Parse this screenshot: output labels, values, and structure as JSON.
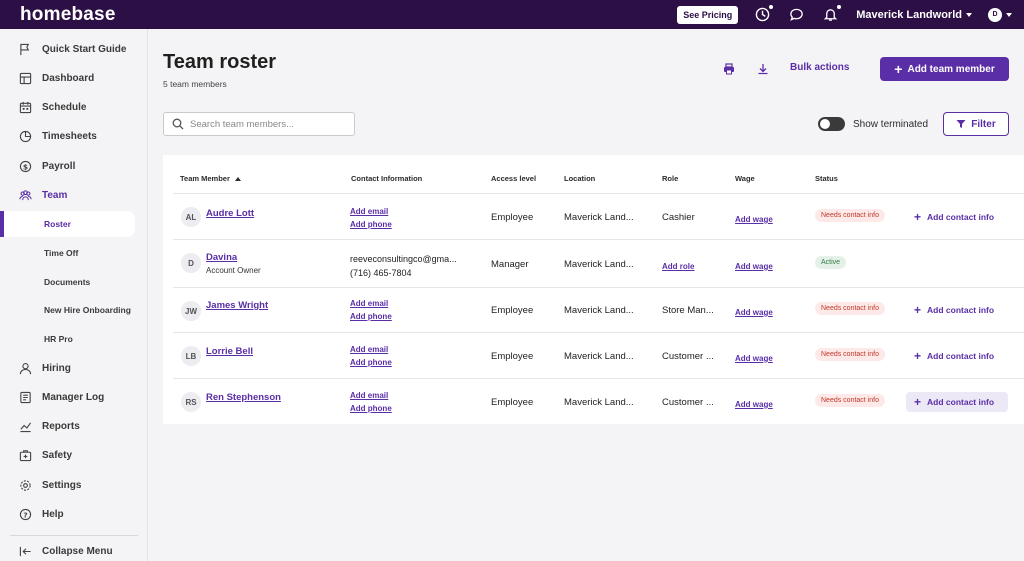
{
  "topbar": {
    "logo": "homebase",
    "see_pricing": "See Pricing",
    "user_name": "Maverick Landworld",
    "avatar_initial": "D",
    "icons": [
      "clock-icon",
      "chat-icon",
      "bell-icon"
    ]
  },
  "sidebar": {
    "items": [
      {
        "label": "Quick Start Guide",
        "icon": "flag-icon"
      },
      {
        "label": "Dashboard",
        "icon": "dashboard-icon"
      },
      {
        "label": "Schedule",
        "icon": "calendar-icon"
      },
      {
        "label": "Timesheets",
        "icon": "timesheet-icon"
      },
      {
        "label": "Payroll",
        "icon": "dollar-icon"
      },
      {
        "label": "Team",
        "icon": "team-icon"
      },
      {
        "label": "Hiring",
        "icon": "person-icon"
      },
      {
        "label": "Manager Log",
        "icon": "log-icon"
      },
      {
        "label": "Reports",
        "icon": "chart-icon"
      },
      {
        "label": "Safety",
        "icon": "first-aid-icon"
      },
      {
        "label": "Settings",
        "icon": "gear-icon"
      },
      {
        "label": "Help",
        "icon": "help-icon"
      }
    ],
    "team_sub": [
      {
        "label": "Roster"
      },
      {
        "label": "Time Off"
      },
      {
        "label": "Documents"
      },
      {
        "label": "New Hire Onboarding"
      },
      {
        "label": "HR Pro"
      }
    ],
    "collapse": "Collapse Menu"
  },
  "header": {
    "title": "Team roster",
    "count": "5 team members",
    "bulk_actions": "Bulk actions",
    "add_member": "Add team member"
  },
  "toolbar": {
    "search_placeholder": "Search team members...",
    "show_terminated": "Show terminated",
    "filter": "Filter"
  },
  "table": {
    "columns": [
      "Team Member",
      "Contact Information",
      "Access level",
      "Location",
      "Role",
      "Wage",
      "Status"
    ],
    "rows": [
      {
        "initials": "AL",
        "name": "Audre Lott",
        "subtitle": "",
        "contact": [
          "Add email",
          "Add phone"
        ],
        "contact_is_link": true,
        "access": "Employee",
        "location": "Maverick Land...",
        "role": "Cashier",
        "role_is_link": false,
        "wage": "Add wage",
        "status": "Needs contact info",
        "status_type": "warn",
        "action": "Add contact info"
      },
      {
        "initials": "D",
        "name": "Davina",
        "subtitle": "Account Owner",
        "contact": [
          "reeveconsultingco@gma...",
          "(716) 465-7804"
        ],
        "contact_is_link": false,
        "access": "Manager",
        "location": "Maverick Land...",
        "role": "Add role",
        "role_is_link": true,
        "wage": "Add wage",
        "status": "Active",
        "status_type": "ok",
        "action": ""
      },
      {
        "initials": "JW",
        "name": "James Wright",
        "subtitle": "",
        "contact": [
          "Add email",
          "Add phone"
        ],
        "contact_is_link": true,
        "access": "Employee",
        "location": "Maverick Land...",
        "role": "Store Man...",
        "role_is_link": false,
        "wage": "Add wage",
        "status": "Needs contact info",
        "status_type": "warn",
        "action": "Add contact info"
      },
      {
        "initials": "LB",
        "name": "Lorrie Bell",
        "subtitle": "",
        "contact": [
          "Add email",
          "Add phone"
        ],
        "contact_is_link": true,
        "access": "Employee",
        "location": "Maverick Land...",
        "role": "Customer ...",
        "role_is_link": false,
        "wage": "Add wage",
        "status": "Needs contact info",
        "status_type": "warn",
        "action": "Add contact info"
      },
      {
        "initials": "RS",
        "name": "Ren Stephenson",
        "subtitle": "",
        "contact": [
          "Add email",
          "Add phone"
        ],
        "contact_is_link": true,
        "access": "Employee",
        "location": "Maverick Land...",
        "role": "Customer ...",
        "role_is_link": false,
        "wage": "Add wage",
        "status": "Needs contact info",
        "status_type": "warn",
        "action": "Add contact info"
      }
    ]
  },
  "colors": {
    "topbar": "#2c0f44",
    "accent": "#5a2ea6",
    "warn_bg": "#fde9e7",
    "warn_text": "#c0392b",
    "ok_bg": "#e5f1e8",
    "ok_text": "#2f7a43"
  }
}
